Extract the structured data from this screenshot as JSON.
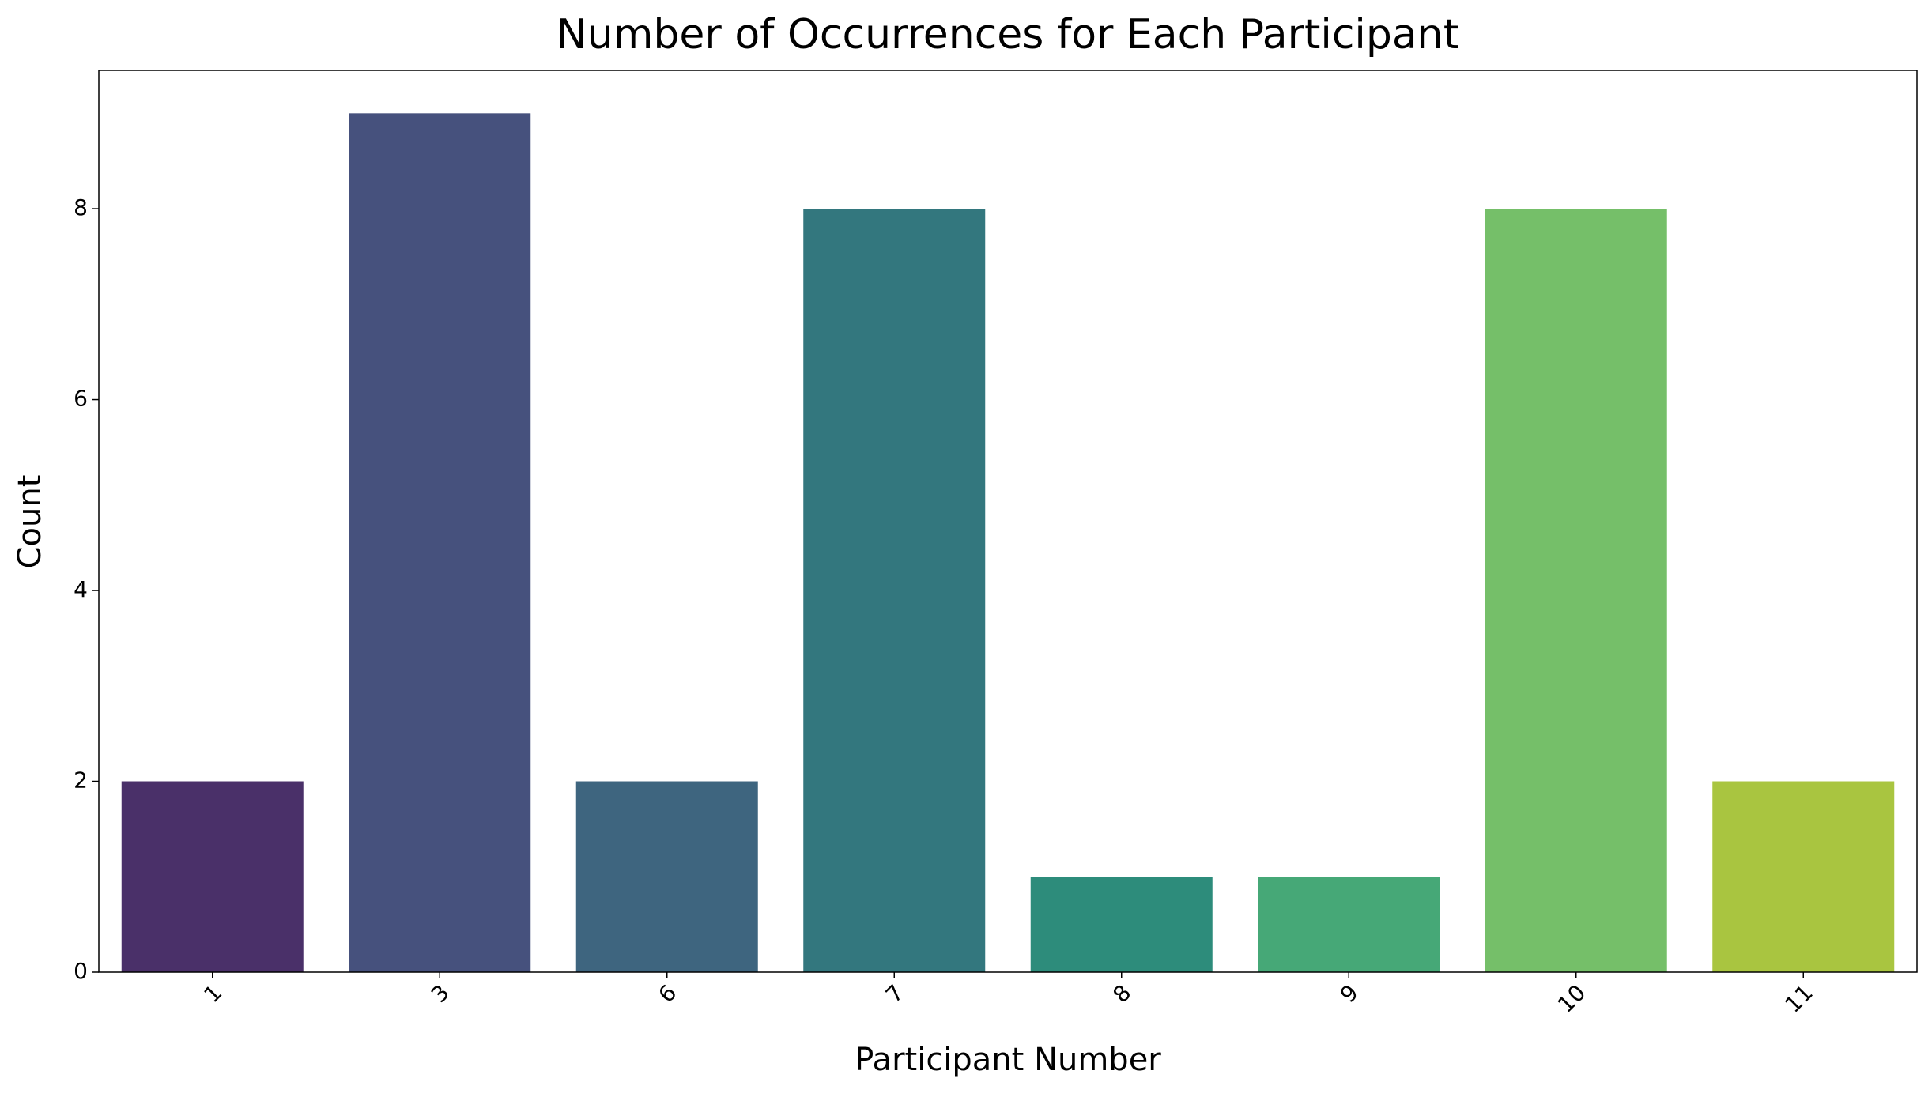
{
  "chart_data": {
    "type": "bar",
    "title": "Number of Occurrences for Each Participant",
    "x_label": "Participant Number",
    "y_label": "Count",
    "categories": [
      "1",
      "3",
      "6",
      "7",
      "8",
      "9",
      "10",
      "11"
    ],
    "values": [
      2,
      9,
      2,
      8,
      1,
      1,
      8,
      2
    ],
    "colors": [
      "#4a3069",
      "#46517d",
      "#3e657f",
      "#33777e",
      "#2d8c7b",
      "#46a877",
      "#75bf69",
      "#a9c540"
    ],
    "ylim": [
      0,
      9.45
    ],
    "yticks": [
      0,
      2,
      4,
      6,
      8
    ],
    "grid": false
  }
}
